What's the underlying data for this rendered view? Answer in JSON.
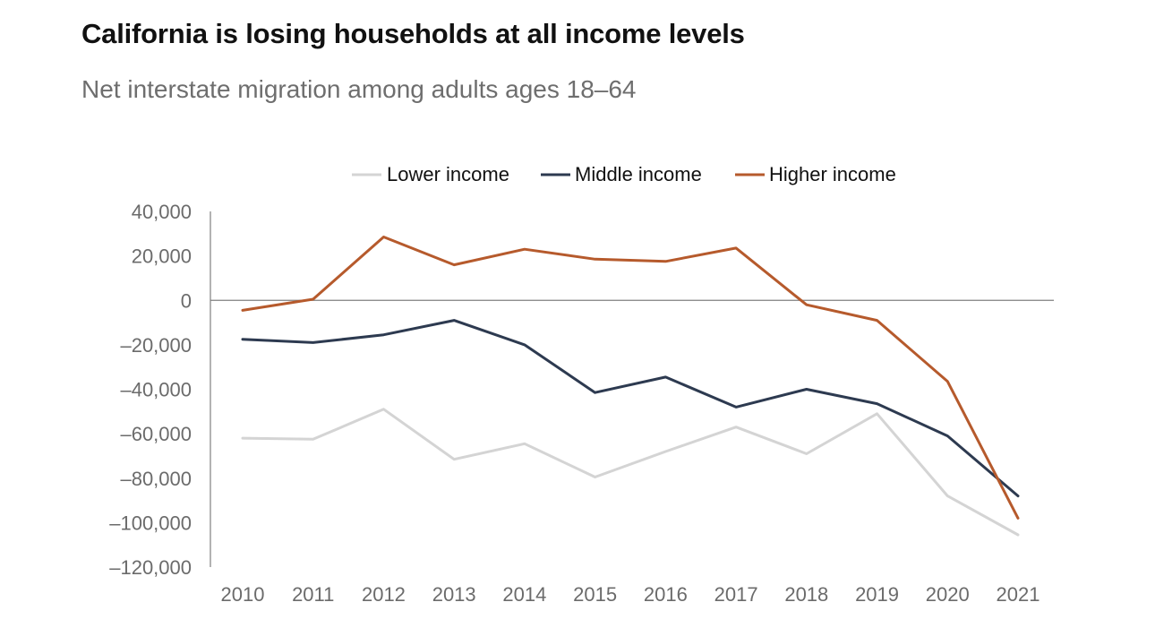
{
  "title": "California is losing households at all income levels",
  "subtitle": "Net interstate migration among adults ages 18–64",
  "chart_data": {
    "type": "line",
    "x": [
      "2010",
      "2011",
      "2012",
      "2013",
      "2014",
      "2015",
      "2016",
      "2017",
      "2018",
      "2019",
      "2020",
      "2021"
    ],
    "ylim": [
      -120000,
      40000
    ],
    "y_ticks": [
      40000,
      20000,
      0,
      -20000,
      -40000,
      -60000,
      -80000,
      -100000,
      -120000
    ],
    "y_tick_labels": [
      "40,000",
      "20,000",
      "0",
      "–20,000",
      "–40,000",
      "–60,000",
      "–80,000",
      "–100,000",
      "–120,000"
    ],
    "grid": false,
    "legend_position": "top-center",
    "series": [
      {
        "name": "Lower income",
        "color": "#d4d4d4",
        "values": [
          -62000,
          -62500,
          -49000,
          -71500,
          -64500,
          -79500,
          -68000,
          -57000,
          -69000,
          -51000,
          -88000,
          -105500
        ]
      },
      {
        "name": "Middle income",
        "color": "#2d3a50",
        "values": [
          -17500,
          -19000,
          -15500,
          -9000,
          -20000,
          -41500,
          -34500,
          -48000,
          -40000,
          -46500,
          -61000,
          -88000
        ]
      },
      {
        "name": "Higher income",
        "color": "#b65a2c",
        "values": [
          -4500,
          500,
          28500,
          16000,
          23000,
          18500,
          17500,
          23500,
          -2000,
          -9000,
          -36500,
          -98000
        ]
      }
    ]
  }
}
